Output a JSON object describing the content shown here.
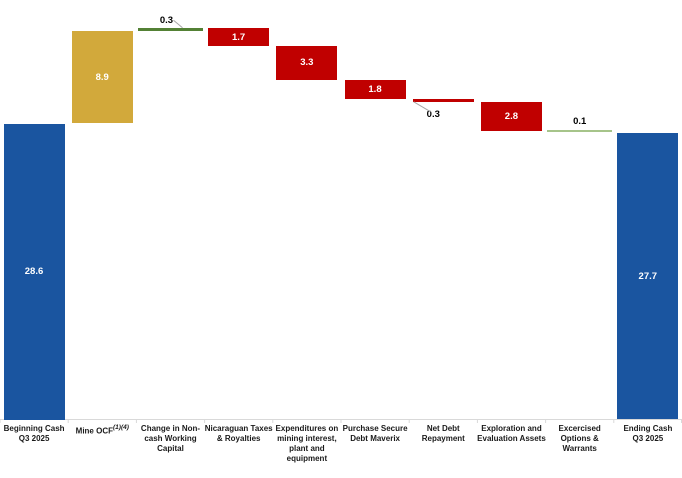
{
  "chart_data": {
    "type": "waterfall",
    "title": "",
    "y_axis_visible": false,
    "x_axis_line": true,
    "categories": [
      "Beginning Cash Q3 2025",
      "Mine OCF(1)(4)",
      "Change in Non-cash Working Capital",
      "Nicaraguan Taxes & Royalties",
      "Expenditures on mining interest, plant and equipment",
      "Purchase Secure Debt Maverix",
      "Net Debt Repayment",
      "Exploration and Evaluation Assets",
      "Excercised Options & Warrants",
      "Ending Cash Q3 2025"
    ],
    "values": [
      28.6,
      8.9,
      0.3,
      -1.7,
      -3.3,
      -1.8,
      -0.3,
      -2.8,
      0.1,
      27.7
    ],
    "items": [
      {
        "name": "beginning-cash",
        "label_lines": [
          "Beginning Cash",
          "Q3 2025"
        ],
        "value": 28.6,
        "display": "28.6",
        "kind": "begin",
        "style": "bar",
        "color_key": "blue",
        "value_label": "inside",
        "leader": false
      },
      {
        "name": "mine-ocf",
        "label_lines": [
          "Mine OCF"
        ],
        "label_superscript": "(1)(4)",
        "value": 8.9,
        "display": "8.9",
        "kind": "increase",
        "style": "bar",
        "color_key": "gold",
        "value_label": "inside",
        "leader": false
      },
      {
        "name": "change-non-cash-working-capital",
        "label_lines": [
          "Change in Non-",
          "cash Working",
          "Capital"
        ],
        "value": 0.3,
        "display": "0.3",
        "kind": "increase",
        "style": "thin",
        "color_key": "green",
        "value_label": "above",
        "leader": true
      },
      {
        "name": "nicaraguan-taxes-royalties",
        "label_lines": [
          "Nicaraguan Taxes",
          "& Royalties"
        ],
        "value": 1.7,
        "display": "1.7",
        "kind": "decrease",
        "style": "bar",
        "color_key": "red",
        "value_label": "inside",
        "leader": false
      },
      {
        "name": "expenditures-mining-interest-plant-equipment",
        "label_lines": [
          "Expenditures on",
          "mining interest,",
          "plant and",
          "equipment"
        ],
        "value": 3.3,
        "display": "3.3",
        "kind": "decrease",
        "style": "bar",
        "color_key": "red",
        "value_label": "inside",
        "leader": false
      },
      {
        "name": "purchase-secure-debt-maverix",
        "label_lines": [
          "Purchase Secure",
          "Debt Maverix"
        ],
        "value": 1.8,
        "display": "1.8",
        "kind": "decrease",
        "style": "bar",
        "color_key": "red",
        "value_label": "inside",
        "leader": false
      },
      {
        "name": "net-debt-repayment",
        "label_lines": [
          "Net Debt",
          "Repayment"
        ],
        "value": 0.3,
        "display": "0.3",
        "kind": "decrease",
        "style": "thin",
        "color_key": "red",
        "value_label": "below",
        "leader": true
      },
      {
        "name": "exploration-evaluation-assets",
        "label_lines": [
          "Exploration and",
          "Evaluation Assets"
        ],
        "value": 2.8,
        "display": "2.8",
        "kind": "decrease",
        "style": "bar",
        "color_key": "red",
        "value_label": "inside",
        "leader": false
      },
      {
        "name": "excercised-options-warrants",
        "label_lines": [
          "Excercised",
          "Options &",
          "Warrants"
        ],
        "value": 0.1,
        "display": "0.1",
        "kind": "increase",
        "style": "thin",
        "color_key": "green_light",
        "value_label": "above",
        "leader": false
      },
      {
        "name": "ending-cash",
        "label_lines": [
          "Ending Cash",
          "Q3 2025"
        ],
        "value": 27.7,
        "display": "27.7",
        "kind": "end",
        "style": "bar",
        "color_key": "blue",
        "value_label": "inside",
        "leader": false
      }
    ],
    "colors": {
      "blue": "#1A55A0",
      "gold": "#D2A93B",
      "red": "#C00000",
      "green": "#538135",
      "green_light": "#A6C48A",
      "axis": "#D9D9D9",
      "leader": "#A6A6A6",
      "value_inside_text": "#FFFFFF",
      "value_outside_text": "#000000",
      "category_text": "#1A1A1A"
    }
  }
}
